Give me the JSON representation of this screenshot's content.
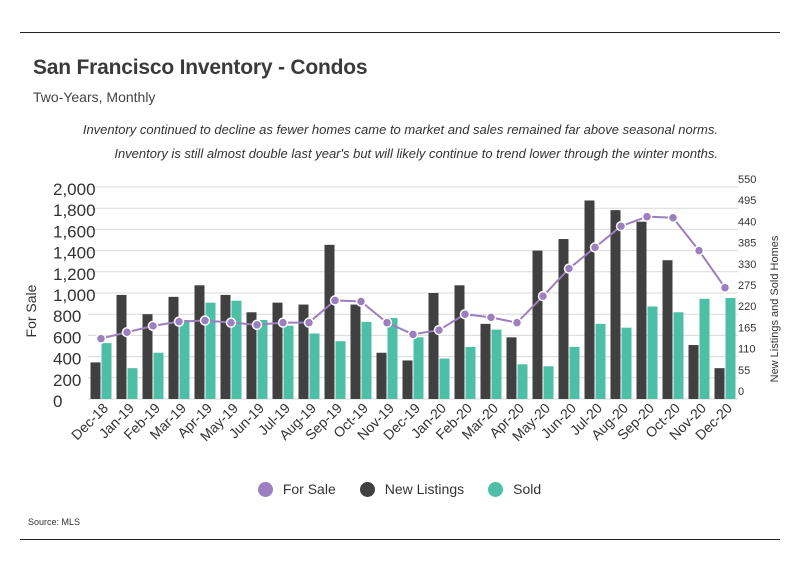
{
  "header": {
    "title": "San Francisco Inventory - Condos",
    "subtitle": "Two-Years, Monthly",
    "note_line1": "Inventory continued to decline as fewer homes came to market and sales remained far above seasonal norms.",
    "note_line2": "Inventory is still almost double last year's but will likely continue to trend lower through the winter months."
  },
  "footer": {
    "source": "Source:  MLS"
  },
  "colors": {
    "for_sale": "#9b7fc0",
    "new_listings": "#404040",
    "sold": "#4dbfa6",
    "grid": "#d9d9d9"
  },
  "chart_data": {
    "type": "bar",
    "categories": [
      "Dec-18",
      "Jan-19",
      "Feb-19",
      "Mar-19",
      "Apr-19",
      "May-19",
      "Jun-19",
      "Jul-19",
      "Aug-19",
      "Sep-19",
      "Oct-19",
      "Nov-19",
      "Dec-19",
      "Jan-20",
      "Feb-20",
      "Mar-20",
      "Apr-20",
      "May-20",
      "Jun-20",
      "Jul-20",
      "Aug-20",
      "Sep-20",
      "Oct-20",
      "Nov-20",
      "Dec-20"
    ],
    "ylabel": "For Sale",
    "y2label": "New Listings and Sold Homes",
    "ylim": [
      0,
      2000
    ],
    "y_ticks": [
      "2,000",
      "1,800",
      "1,600",
      "1,400",
      "1,200",
      "1,000",
      "800",
      "600",
      "400",
      "200",
      "0"
    ],
    "y2lim": [
      0,
      550
    ],
    "y2_ticks": [
      "550",
      "495",
      "440",
      "385",
      "330",
      "275",
      "220",
      "165",
      "110",
      "55",
      "0"
    ],
    "series": [
      {
        "name": "For Sale",
        "axis": "left",
        "kind": "line",
        "values": [
          570,
          630,
          690,
          730,
          740,
          720,
          700,
          720,
          720,
          930,
          920,
          720,
          610,
          650,
          800,
          770,
          720,
          970,
          1230,
          1430,
          1630,
          1720,
          1710,
          1400,
          1050
        ]
      },
      {
        "name": "New Listings",
        "axis": "right",
        "kind": "bar",
        "values": [
          95,
          270,
          220,
          265,
          295,
          270,
          225,
          250,
          245,
          400,
          245,
          120,
          100,
          275,
          295,
          195,
          160,
          385,
          415,
          515,
          490,
          460,
          360,
          140,
          80
        ]
      },
      {
        "name": "Sold",
        "axis": "right",
        "kind": "bar",
        "values": [
          145,
          80,
          120,
          205,
          250,
          255,
          205,
          190,
          170,
          150,
          200,
          210,
          160,
          105,
          135,
          180,
          90,
          85,
          135,
          195,
          185,
          240,
          225,
          260,
          262
        ]
      }
    ],
    "legend": [
      "For Sale",
      "New Listings",
      "Sold"
    ],
    "legend_position": "bottom",
    "grid": true
  }
}
